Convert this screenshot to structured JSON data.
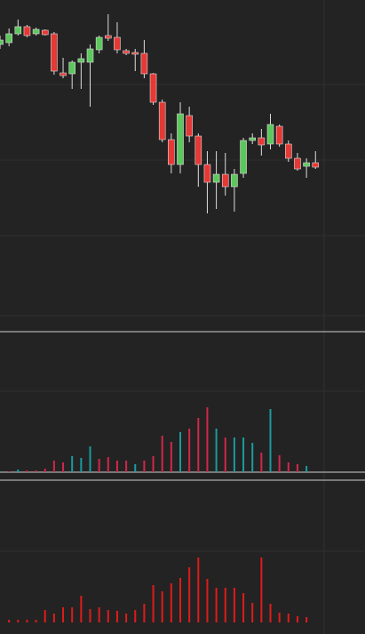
{
  "chart_data": [
    {
      "type": "candlestick",
      "open": [
        310,
        312,
        322,
        330,
        322,
        326,
        322,
        278,
        277,
        290,
        290,
        304,
        320,
        318,
        303,
        301,
        300,
        277,
        245,
        203,
        175,
        230,
        207,
        175,
        155,
        164,
        150,
        165,
        202,
        205,
        198,
        218,
        198,
        182,
        173,
        177
      ],
      "close": [
        315,
        322,
        330,
        320,
        327,
        321,
        280,
        275,
        290,
        294,
        305,
        318,
        317,
        304,
        300,
        299,
        277,
        245,
        203,
        175,
        232,
        207,
        175,
        155,
        164,
        150,
        164,
        202,
        205,
        197,
        220,
        198,
        182,
        170,
        177,
        172
      ],
      "high": [
        320,
        328,
        338,
        332,
        329,
        327,
        324,
        295,
        292,
        300,
        310,
        320,
        344,
        335,
        305,
        305,
        315,
        278,
        248,
        210,
        245,
        240,
        210,
        190,
        190,
        188,
        170,
        205,
        210,
        215,
        232,
        220,
        202,
        188,
        182,
        190
      ],
      "low": [
        305,
        308,
        320,
        318,
        320,
        320,
        276,
        272,
        260,
        260,
        240,
        300,
        314,
        300,
        298,
        280,
        272,
        242,
        200,
        165,
        165,
        200,
        150,
        120,
        125,
        140,
        122,
        160,
        198,
        185,
        192,
        195,
        178,
        168,
        160,
        170
      ],
      "up_color": "#5cc85c",
      "down_color": "#e53935",
      "ylim": [
        0,
        360
      ],
      "yticks": [
        5,
        95,
        180,
        265
      ],
      "grid": true
    },
    {
      "type": "bar",
      "values": [
        1,
        1,
        3,
        2,
        2,
        4,
        13,
        11,
        18,
        16,
        29,
        15,
        17,
        13,
        13,
        9,
        13,
        18,
        41,
        34,
        45,
        49,
        61,
        73,
        49,
        39,
        39,
        39,
        33,
        22,
        71,
        19,
        11,
        9,
        7,
        null
      ],
      "colors": [
        "#1a9ba1",
        "#d0284a",
        "#1a9ba1",
        "#d0284a",
        "#d0284a",
        "#d0284a",
        "#d0284a",
        "#d0284a",
        "#1a9ba1",
        "#1a9ba1",
        "#1a9ba1",
        "#d0284a",
        "#d0284a",
        "#d0284a",
        "#d0284a",
        "#1a9ba1",
        "#d0284a",
        "#d0284a",
        "#d0284a",
        "#d0284a",
        "#1a9ba1",
        "#d0284a",
        "#d0284a",
        "#d0284a",
        "#1a9ba1",
        "#d0284a",
        "#1a9ba1",
        "#1a9ba1",
        "#1a9ba1",
        "#d0284a",
        "#1a9ba1",
        "#d0284a",
        "#d0284a",
        "#d0284a",
        "#1a9ba1",
        "#d0284a"
      ],
      "ylim": [
        0,
        156
      ],
      "yticks": [
        91
      ],
      "grid": true
    },
    {
      "type": "bar",
      "values": [
        null,
        3,
        3,
        3,
        3,
        14,
        10,
        17,
        17,
        30,
        15,
        17,
        14,
        13,
        10,
        14,
        21,
        42,
        35,
        44,
        50,
        62,
        73,
        49,
        39,
        39,
        39,
        33,
        22,
        73,
        21,
        11,
        10,
        7,
        6,
        null
      ],
      "color": "#e01b1b",
      "ylim": [
        0,
        155
      ],
      "yticks": [
        80
      ],
      "grid": true
    }
  ]
}
